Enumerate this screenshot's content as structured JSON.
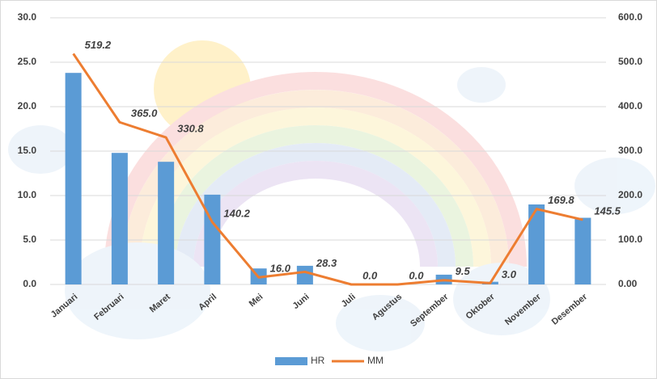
{
  "chart_data": {
    "type": "combo",
    "categories": [
      "Januari",
      "Februari",
      "Maret",
      "April",
      "Mei",
      "Juni",
      "Juli",
      "Agustus",
      "September",
      "Oktober",
      "November",
      "Desember"
    ],
    "series": [
      {
        "name": "HR",
        "type": "bar",
        "color": "#5b9bd5",
        "values": [
          23.8,
          14.8,
          13.8,
          10.1,
          1.8,
          2.1,
          0,
          0,
          1.1,
          0.3,
          9.0,
          7.5
        ]
      },
      {
        "name": "MM",
        "type": "line",
        "axis": "y2",
        "color": "#ed7d31",
        "values": [
          519.2,
          365,
          330.8,
          140.2,
          16,
          28.3,
          0,
          0,
          9.5,
          3,
          169.8,
          145.5
        ],
        "value_labels": [
          "519.2",
          "365.0",
          "330.8",
          "140.2",
          "16.0",
          "28.3",
          "0.0",
          "0.0",
          "9.5",
          "3.0",
          "169.8",
          "145.5"
        ]
      }
    ],
    "ylim": [
      0,
      30
    ],
    "yticks": [
      {
        "value": 0,
        "label": "0.0"
      },
      {
        "value": 5,
        "label": "5.0"
      },
      {
        "value": 10,
        "label": "10.0"
      },
      {
        "value": 15,
        "label": "15.0"
      },
      {
        "value": 20,
        "label": "20.0"
      },
      {
        "value": 25,
        "label": "25.0"
      },
      {
        "value": 30,
        "label": "30.0"
      }
    ],
    "y2lim": [
      0,
      600
    ],
    "y2ticks": [
      {
        "value": 0,
        "label": "0.00"
      },
      {
        "value": 100,
        "label": "100.0"
      },
      {
        "value": 200,
        "label": "200.0"
      },
      {
        "value": 300,
        "label": "300.0"
      },
      {
        "value": 400,
        "label": "400.0"
      },
      {
        "value": 500,
        "label": "500.0"
      },
      {
        "value": 600,
        "label": "600.0"
      }
    ],
    "grid": true,
    "legend": "bottom"
  }
}
